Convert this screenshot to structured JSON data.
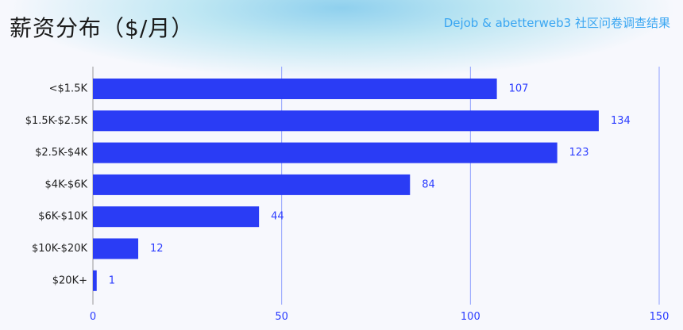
{
  "header": {
    "title": "薪资分布（$/月）",
    "source": "Dejob & abetterweb3 社区问卷调查结果"
  },
  "colors": {
    "bar": "#2a3cf5",
    "grid": "#8fa0ff",
    "value_label": "#2b3cff",
    "source": "#3aa6f2"
  },
  "chart_data": {
    "type": "bar",
    "orientation": "horizontal",
    "title": "薪资分布（$/月）",
    "categories": [
      "<$1.5K",
      "$1.5K-$2.5K",
      "$2.5K-$4K",
      "$4K-$6K",
      "$6K-$10K",
      "$10K-$20K",
      "$20K+"
    ],
    "values": [
      107,
      134,
      123,
      84,
      44,
      12,
      1
    ],
    "xlim": [
      0,
      150
    ],
    "xticks": [
      0,
      50,
      100,
      150
    ],
    "grid": "vertical",
    "data_labels": true
  }
}
